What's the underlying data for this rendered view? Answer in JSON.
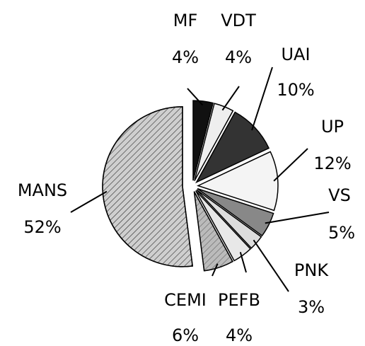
{
  "chart_data": {
    "type": "pie",
    "categories": [
      "MF",
      "VDT",
      "UAI",
      "UP",
      "VS",
      "PNK",
      "PEFB",
      "CEMI",
      "MANS"
    ],
    "values": [
      4,
      4,
      10,
      12,
      5,
      3,
      4,
      6,
      52
    ],
    "value_labels": [
      "4%",
      "4%",
      "10%",
      "12%",
      "5%",
      "3%",
      "4%",
      "6%",
      "52%"
    ],
    "colors": [
      "#111111",
      "#eeeeee",
      "#333333",
      "#f4f4f4",
      "#888888",
      "#dddddd",
      "#e8e8e8",
      "#bbbbbb",
      "#cfcfcf"
    ]
  }
}
